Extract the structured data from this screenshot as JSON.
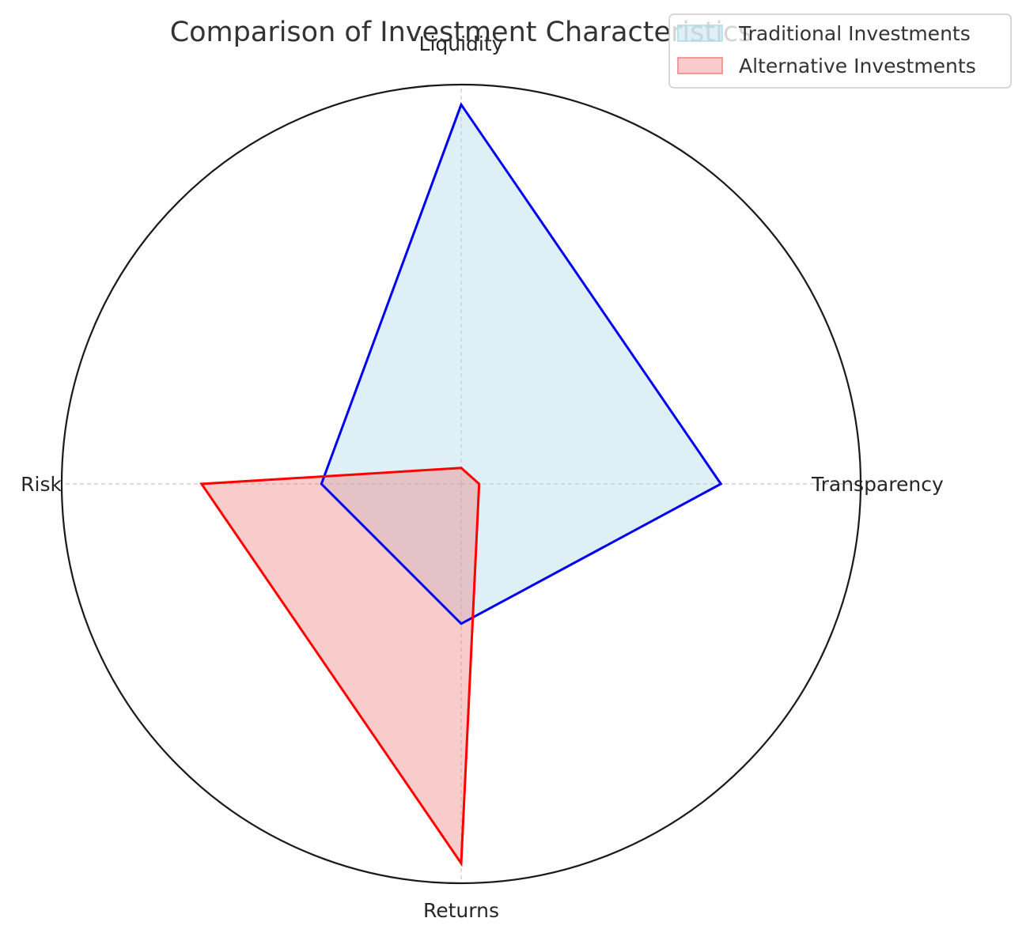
{
  "chart_data": {
    "type": "radar",
    "title": "Comparison of Investment Characteristics",
    "categories": [
      "Liquidity",
      "Transparency",
      "Returns",
      "Risk"
    ],
    "rmax": 1.0,
    "grid": true,
    "legend_position": "top-right",
    "series": [
      {
        "name": "Traditional Investments",
        "values": [
          0.95,
          0.65,
          0.35,
          0.35
        ],
        "line_color": "#0000ee",
        "fill_color": "#add8e6"
      },
      {
        "name": "Alternative Investments",
        "values": [
          0.04,
          0.045,
          0.95,
          0.65
        ],
        "line_color": "#ff0000",
        "fill_color": "#f08080"
      }
    ]
  }
}
